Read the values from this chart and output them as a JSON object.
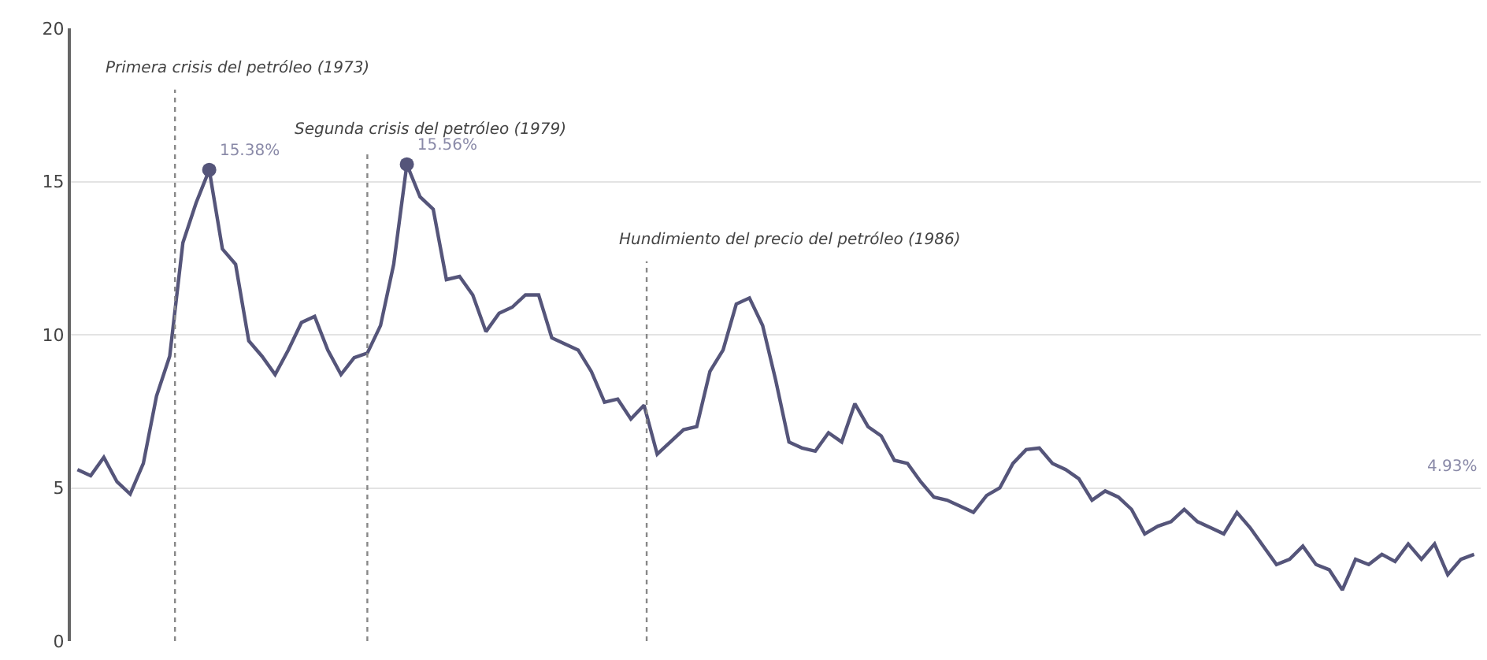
{
  "chart_data": {
    "type": "line",
    "categories": [
      null,
      null,
      null,
      null,
      null,
      null,
      null,
      null,
      null,
      null,
      null,
      null,
      null,
      null,
      null,
      null,
      null,
      null,
      null,
      null,
      null,
      null,
      null,
      null,
      null,
      null,
      null,
      null,
      null,
      null,
      null,
      null,
      null,
      null,
      null,
      null,
      null,
      null,
      null,
      null,
      null,
      null,
      null,
      null,
      null,
      null,
      null,
      null,
      null,
      null,
      null,
      null,
      null,
      null,
      null,
      null,
      null,
      null,
      null,
      null,
      null,
      null,
      null,
      null,
      null,
      null,
      null,
      null,
      null,
      null,
      null,
      null,
      null,
      null,
      null,
      null,
      null,
      null,
      null,
      null,
      null,
      null,
      null,
      null,
      null,
      null,
      null,
      null,
      null,
      null,
      null,
      null,
      null,
      null,
      null,
      null,
      null,
      null,
      null,
      null,
      null,
      null,
      null,
      null,
      null,
      null,
      null
    ],
    "series": [
      {
        "color": "#55557a",
        "values": [
          5.6,
          5.4,
          6.0,
          5.2,
          4.8,
          5.8,
          8.0,
          9.3,
          13.0,
          14.3,
          15.38,
          12.8,
          12.3,
          9.8,
          9.3,
          8.7,
          9.5,
          10.4,
          10.6,
          9.5,
          8.7,
          9.25,
          9.4,
          10.3,
          12.3,
          15.56,
          14.5,
          14.1,
          11.8,
          11.9,
          11.3,
          10.1,
          10.7,
          10.9,
          11.3,
          11.3,
          9.9,
          9.7,
          9.5,
          8.8,
          7.8,
          7.9,
          7.25,
          7.7,
          6.1,
          6.5,
          6.9,
          7.0,
          8.8,
          9.5,
          11.0,
          11.2,
          10.3,
          8.5,
          6.5,
          6.3,
          6.2,
          6.8,
          6.5,
          7.75,
          7.0,
          6.7,
          5.9,
          5.8,
          5.2,
          4.7,
          4.6,
          4.4,
          4.2,
          4.75,
          5.0,
          5.8,
          6.25,
          6.3,
          5.8,
          5.6,
          5.3,
          4.6,
          4.9,
          4.7,
          4.3,
          3.5,
          3.75,
          3.9,
          4.3,
          3.9,
          3.7,
          3.5,
          4.2,
          3.7,
          3.1,
          2.5,
          2.67,
          3.1,
          2.5,
          2.33,
          1.67,
          2.67,
          2.5,
          2.83,
          2.6,
          3.17,
          2.67,
          3.17,
          2.17,
          2.67,
          2.83
        ]
      },
      {
        "type": "scatter",
        "color": "#55557a",
        "marker": "circle",
        "values": [
          null,
          null,
          null,
          null,
          null,
          null,
          null,
          null,
          null,
          null,
          15.38,
          null,
          null,
          null,
          null,
          null,
          null,
          null,
          null,
          null,
          null,
          null,
          null,
          null,
          null,
          15.56,
          null,
          null,
          null,
          null,
          null,
          null,
          null,
          null,
          null,
          null,
          null,
          null,
          null,
          null,
          null,
          null,
          null,
          null,
          null,
          null,
          null,
          null,
          null,
          null,
          null,
          null,
          null,
          null,
          null,
          null,
          null,
          null,
          null,
          null,
          null,
          null,
          null,
          null,
          null,
          null,
          null,
          null,
          null,
          null,
          null,
          null,
          null,
          null,
          null,
          null,
          null,
          null,
          null,
          null,
          null,
          null,
          null,
          null,
          null,
          null,
          null,
          null,
          null,
          null,
          null,
          null,
          null,
          null,
          null,
          null,
          null,
          null,
          null,
          null,
          null,
          null,
          null,
          null,
          null,
          null,
          null
        ],
        "value_labels": [
          null,
          null,
          null,
          null,
          null,
          null,
          null,
          null,
          null,
          null,
          "15.38%",
          null,
          null,
          null,
          null,
          null,
          null,
          null,
          null,
          null,
          null,
          null,
          null,
          null,
          null,
          "15.56%",
          null,
          null,
          null,
          null,
          null,
          null,
          null,
          null,
          null,
          null,
          null,
          null,
          null,
          null,
          null,
          null,
          null,
          null,
          null,
          null,
          null,
          null,
          null,
          null,
          null,
          null,
          null,
          null,
          null,
          null,
          null,
          null,
          null,
          null,
          null,
          null,
          null,
          null,
          null,
          null,
          null,
          null,
          null,
          null,
          null,
          null,
          null,
          null,
          null,
          null,
          null,
          null,
          null,
          null,
          null,
          null,
          null,
          null,
          null,
          null,
          null,
          null,
          null,
          null,
          null,
          null,
          null,
          null,
          null,
          null,
          null,
          null,
          null,
          null,
          null,
          null,
          null,
          null,
          null,
          null,
          null
        ]
      }
    ],
    "ylim": [
      0,
      20
    ],
    "yticks": [
      0,
      5,
      10,
      15,
      20
    ],
    "grid": "y",
    "legend": false,
    "annotations": [
      "Primera crisis del petróleo (1973)",
      "Segunda crisis del petróleo (1979)",
      "Hundimiento del precio del petróleo (1986)",
      "4.93%"
    ]
  }
}
